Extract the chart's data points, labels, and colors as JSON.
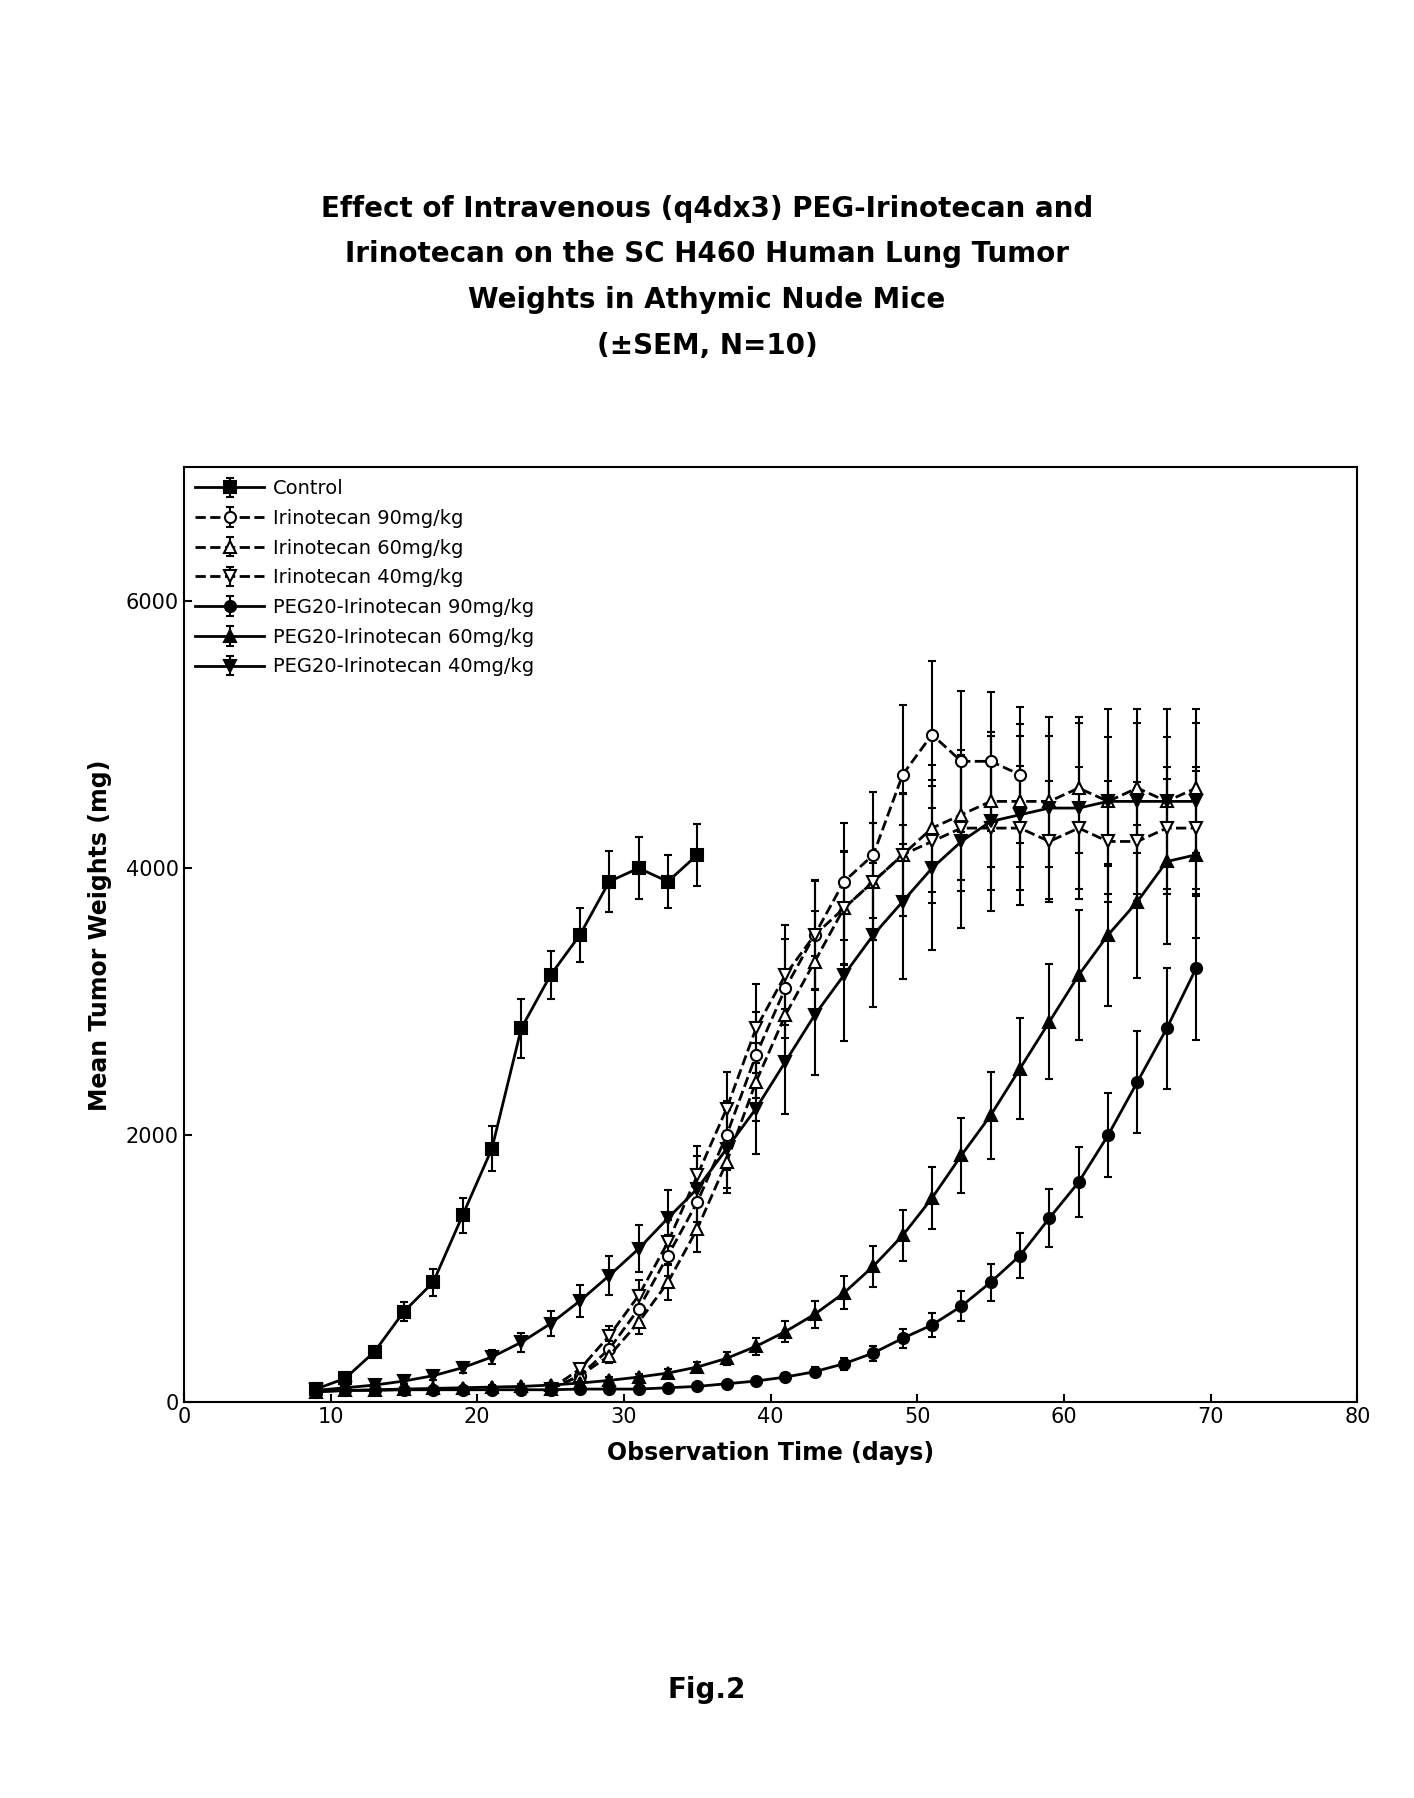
{
  "title": "Effect of Intravenous (q4dx3) PEG-Irinotecan and\nIrinotecan on the SC H460 Human Lung Tumor\nWeights in Athymic Nude Mice\n(±SEM, N=10)",
  "xlabel": "Observation Time (days)",
  "ylabel": "Mean Tumor Weights (mg)",
  "fig_label": "Fig.2",
  "xlim": [
    0,
    80
  ],
  "ylim": [
    0,
    7000
  ],
  "yticks": [
    0,
    2000,
    4000,
    6000
  ],
  "xticks": [
    0,
    10,
    20,
    30,
    40,
    50,
    60,
    70,
    80
  ],
  "series": [
    {
      "label": "Control",
      "style": "solid",
      "marker": "s",
      "marker_fill": "black",
      "x": [
        9,
        11,
        13,
        15,
        17,
        19,
        21,
        23,
        25,
        27,
        29,
        31,
        33,
        35
      ],
      "y": [
        100,
        180,
        380,
        680,
        900,
        1400,
        1900,
        2800,
        3200,
        3500,
        3900,
        4000,
        3900,
        4100
      ],
      "yerr": [
        20,
        25,
        40,
        70,
        100,
        130,
        170,
        220,
        180,
        200,
        230,
        230,
        200,
        230
      ]
    },
    {
      "label": "Irinotecan 90mg/kg",
      "style": "dashed",
      "marker": "o",
      "marker_fill": "white",
      "x": [
        25,
        27,
        29,
        31,
        33,
        35,
        37,
        39,
        41,
        43,
        45,
        47,
        49,
        51,
        53,
        55,
        57
      ],
      "y": [
        100,
        200,
        400,
        700,
        1100,
        1500,
        2000,
        2600,
        3100,
        3500,
        3900,
        4100,
        4700,
        5000,
        4800,
        4800,
        4700
      ],
      "yerr": [
        20,
        35,
        60,
        100,
        150,
        200,
        260,
        320,
        370,
        410,
        440,
        470,
        520,
        550,
        530,
        520,
        510
      ]
    },
    {
      "label": "Irinotecan 60mg/kg",
      "style": "dashed",
      "marker": "^",
      "marker_fill": "white",
      "x": [
        25,
        27,
        29,
        31,
        33,
        35,
        37,
        39,
        41,
        43,
        45,
        47,
        49,
        51,
        53,
        55,
        57,
        59,
        61,
        63,
        65,
        67,
        69
      ],
      "y": [
        100,
        200,
        350,
        600,
        900,
        1300,
        1800,
        2400,
        2900,
        3300,
        3700,
        3900,
        4100,
        4300,
        4400,
        4500,
        4500,
        4500,
        4600,
        4500,
        4600,
        4500,
        4600
      ],
      "yerr": [
        20,
        35,
        55,
        90,
        130,
        175,
        230,
        290,
        340,
        380,
        420,
        440,
        460,
        475,
        485,
        490,
        490,
        488,
        490,
        485,
        490,
        480,
        490
      ]
    },
    {
      "label": "Irinotecan 40mg/kg",
      "style": "dashed",
      "marker": "v",
      "marker_fill": "white",
      "x": [
        25,
        27,
        29,
        31,
        33,
        35,
        37,
        39,
        41,
        43,
        45,
        47,
        49,
        51,
        53,
        55,
        57,
        59,
        61,
        63,
        65,
        67,
        69
      ],
      "y": [
        100,
        250,
        500,
        800,
        1200,
        1700,
        2200,
        2800,
        3200,
        3500,
        3700,
        3900,
        4100,
        4200,
        4300,
        4300,
        4300,
        4200,
        4300,
        4200,
        4200,
        4300,
        4300
      ],
      "yerr": [
        20,
        40,
        75,
        115,
        165,
        220,
        275,
        335,
        375,
        405,
        425,
        440,
        455,
        462,
        468,
        465,
        462,
        455,
        458,
        452,
        448,
        458,
        455
      ]
    },
    {
      "label": "PEG20-Irinotecan 90mg/kg",
      "style": "solid",
      "marker": "o",
      "marker_fill": "black",
      "x": [
        9,
        11,
        13,
        15,
        17,
        19,
        21,
        23,
        25,
        27,
        29,
        31,
        33,
        35,
        37,
        39,
        41,
        43,
        45,
        47,
        49,
        51,
        53,
        55,
        57,
        59,
        61,
        63,
        65,
        67,
        69
      ],
      "y": [
        80,
        90,
        90,
        95,
        95,
        95,
        95,
        95,
        95,
        100,
        100,
        100,
        110,
        120,
        140,
        160,
        190,
        230,
        290,
        370,
        480,
        580,
        720,
        900,
        1100,
        1380,
        1650,
        2000,
        2400,
        2800,
        3250
      ],
      "yerr": [
        12,
        13,
        13,
        13,
        13,
        13,
        13,
        13,
        13,
        14,
        14,
        14,
        15,
        17,
        20,
        23,
        28,
        35,
        44,
        56,
        73,
        90,
        112,
        140,
        172,
        215,
        260,
        315,
        380,
        450,
        540
      ]
    },
    {
      "label": "PEG20-Irinotecan 60mg/kg",
      "style": "solid",
      "marker": "^",
      "marker_fill": "black",
      "x": [
        9,
        11,
        13,
        15,
        17,
        19,
        21,
        23,
        25,
        27,
        29,
        31,
        33,
        35,
        37,
        39,
        41,
        43,
        45,
        47,
        49,
        51,
        53,
        55,
        57,
        59,
        61,
        63,
        65,
        67,
        69
      ],
      "y": [
        80,
        90,
        95,
        100,
        105,
        110,
        115,
        120,
        130,
        145,
        165,
        190,
        220,
        265,
        330,
        420,
        530,
        660,
        820,
        1020,
        1250,
        1530,
        1850,
        2150,
        2500,
        2850,
        3200,
        3500,
        3750,
        4050,
        4100
      ],
      "yerr": [
        12,
        13,
        13,
        14,
        14,
        15,
        15,
        16,
        17,
        19,
        22,
        26,
        31,
        38,
        48,
        62,
        79,
        99,
        123,
        154,
        189,
        231,
        280,
        325,
        378,
        432,
        487,
        534,
        572,
        618,
        626
      ]
    },
    {
      "label": "PEG20-Irinotecan 40mg/kg",
      "style": "solid",
      "marker": "v",
      "marker_fill": "black",
      "x": [
        9,
        11,
        13,
        15,
        17,
        19,
        21,
        23,
        25,
        27,
        29,
        31,
        33,
        35,
        37,
        39,
        41,
        43,
        45,
        47,
        49,
        51,
        53,
        55,
        57,
        59,
        61,
        63,
        65,
        67,
        69
      ],
      "y": [
        90,
        110,
        130,
        160,
        200,
        260,
        340,
        450,
        590,
        760,
        950,
        1150,
        1380,
        1600,
        1900,
        2200,
        2550,
        2900,
        3200,
        3500,
        3750,
        4000,
        4200,
        4350,
        4400,
        4450,
        4450,
        4500,
        4500,
        4500,
        4500
      ],
      "yerr": [
        14,
        17,
        20,
        25,
        31,
        40,
        53,
        70,
        91,
        117,
        145,
        177,
        212,
        246,
        292,
        338,
        392,
        446,
        492,
        538,
        577,
        616,
        647,
        669,
        677,
        684,
        684,
        693,
        693,
        693,
        693
      ]
    }
  ],
  "title_fontsize": 20,
  "axis_label_fontsize": 17,
  "tick_fontsize": 15,
  "legend_fontsize": 14,
  "fig_label_fontsize": 20
}
